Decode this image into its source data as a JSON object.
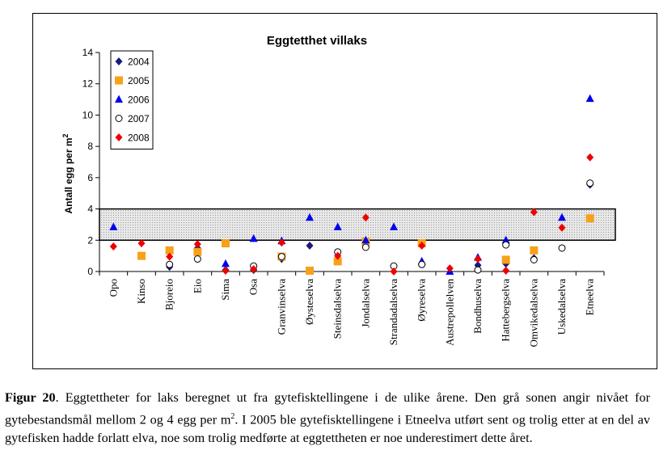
{
  "chart_data": {
    "type": "scatter",
    "title": "Eggtetthet villaks",
    "ylabel": "Antall egg per m",
    "ylabel_superscript": "2",
    "ylim": [
      0,
      14
    ],
    "yticks": [
      0,
      2,
      4,
      6,
      8,
      10,
      12,
      14
    ],
    "target_band": [
      2,
      4
    ],
    "legend_position": "top-left",
    "categories": [
      "Opo",
      "Kinso",
      "Bjoreio",
      "Eio",
      "Sima",
      "Osa",
      "Granvinselva",
      "Øysteselva",
      "Steinsdalselva",
      "Jondalselva",
      "Strandadalselva",
      "Øyreselva",
      "Austrepollelven",
      "Bondhuselva",
      "Hattebergselva",
      "Omvikedalselva",
      "Uskedalselva",
      "Etneelva"
    ],
    "series": [
      {
        "name": "2004",
        "marker": "diamond",
        "color": "#1a1a7a",
        "values": [
          null,
          null,
          0.3,
          1.5,
          0.1,
          0.1,
          0.8,
          1.65,
          0.75,
          1.6,
          null,
          0.5,
          null,
          0.4,
          0.5,
          0.85,
          null,
          5.55
        ]
      },
      {
        "name": "2005",
        "marker": "square",
        "color": "#f7a11a",
        "values": [
          null,
          1.0,
          1.35,
          1.25,
          1.8,
          null,
          0.95,
          0.05,
          0.65,
          1.9,
          null,
          1.8,
          null,
          null,
          0.75,
          1.35,
          null,
          3.4
        ]
      },
      {
        "name": "2006",
        "marker": "triangle",
        "color": "#0000ee",
        "values": [
          2.85,
          null,
          null,
          null,
          0.5,
          2.1,
          1.95,
          3.45,
          2.85,
          2.0,
          2.85,
          0.65,
          0.0,
          0.9,
          2.0,
          null,
          3.45,
          11.05
        ]
      },
      {
        "name": "2007",
        "marker": "circle",
        "color": "#000000",
        "values": [
          null,
          null,
          0.45,
          0.8,
          null,
          0.35,
          0.95,
          null,
          1.25,
          1.55,
          0.35,
          0.45,
          null,
          0.1,
          1.7,
          0.75,
          1.5,
          5.65
        ]
      },
      {
        "name": "2008",
        "marker": "diamond",
        "color": "#ee0000",
        "values": [
          1.6,
          1.8,
          0.95,
          1.75,
          0.05,
          0.15,
          1.85,
          null,
          1.0,
          3.45,
          0.0,
          1.65,
          0.2,
          0.8,
          0.05,
          3.8,
          2.8,
          7.3
        ]
      }
    ]
  },
  "caption": {
    "label": "Figur 20",
    "text_before_sup": ". Eggtettheter for laks beregnet ut fra gytefisktellingene i de ulike årene. Den grå sonen angir nivået for gytebestandsmål mellom 2 og 4 egg per m",
    "superscript": "2",
    "text_after_sup": ". I 2005 ble gytefisktellingene i Etneelva utført sent og trolig etter at en del av gytefisken hadde forlatt elva, noe som trolig medførte at eggtettheten er noe underestimert dette året."
  }
}
